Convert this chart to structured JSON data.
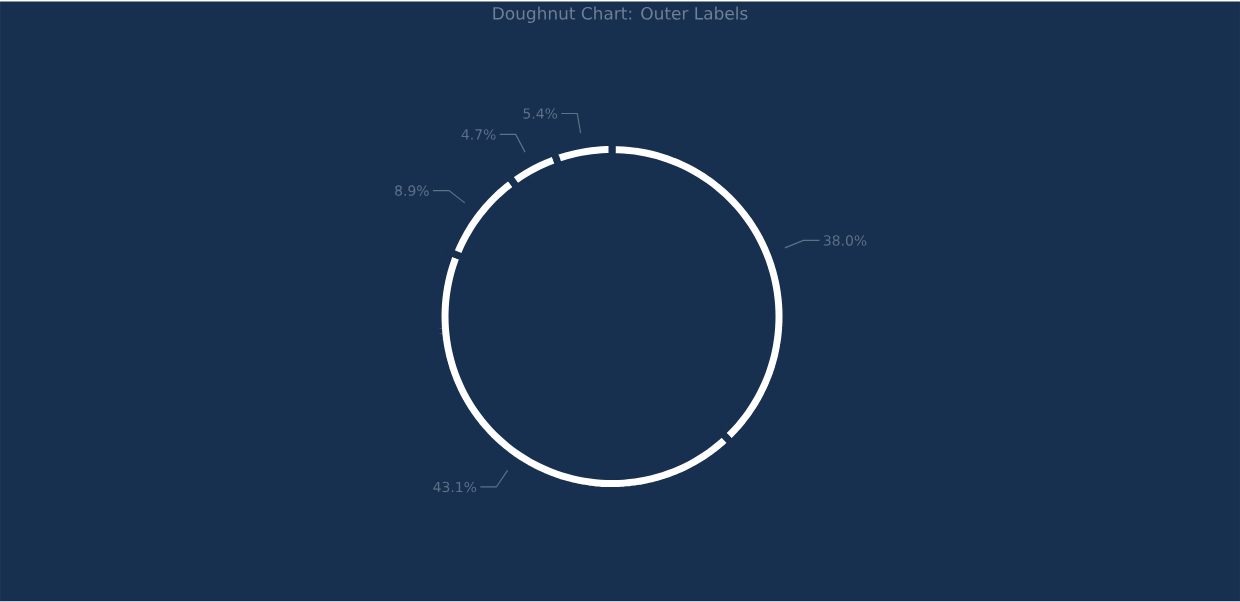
{
  "chart_data": {
    "type": "donut",
    "title": "Doughnut Chart: Outer Labels",
    "categories": [
      null,
      null,
      null,
      null,
      null
    ],
    "values": [
      38.0,
      43.1,
      8.9,
      4.7,
      5.4
    ],
    "colors": [
      "#ffffff",
      "#ffffff",
      "#ffffff",
      "#ffffff",
      "#ffffff"
    ],
    "value_labels": [
      "38.0%",
      "43.1%",
      "8.9%",
      "4.7%",
      "5.4%"
    ]
  }
}
